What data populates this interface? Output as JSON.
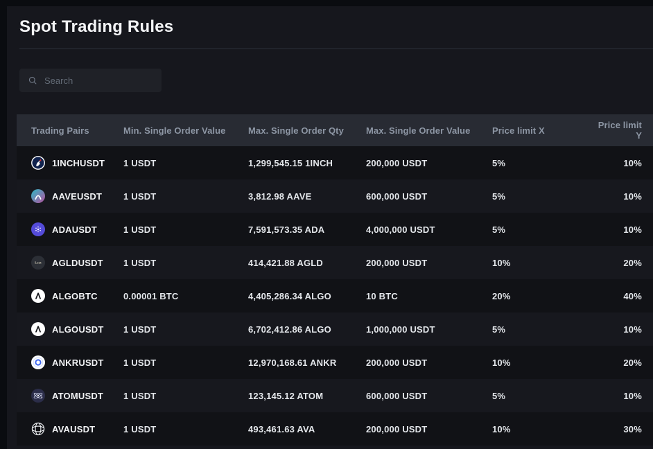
{
  "page": {
    "title": "Spot Trading Rules"
  },
  "search": {
    "placeholder": "Search"
  },
  "table": {
    "columns": [
      "Trading Pairs",
      "Min. Single Order Value",
      "Max. Single Order Qty",
      "Max. Single Order Value",
      "Price limit X",
      "Price limit Y"
    ],
    "rows": [
      {
        "pair": "1INCHUSDT",
        "icon": "1inch-icon",
        "min_single_order_value": "1 USDT",
        "max_single_order_qty": "1,299,545.15 1INCH",
        "max_single_order_value": "200,000 USDT",
        "price_limit_x": "5%",
        "price_limit_y": "10%"
      },
      {
        "pair": "AAVEUSDT",
        "icon": "aave-icon",
        "min_single_order_value": "1 USDT",
        "max_single_order_qty": "3,812.98 AAVE",
        "max_single_order_value": "600,000 USDT",
        "price_limit_x": "5%",
        "price_limit_y": "10%"
      },
      {
        "pair": "ADAUSDT",
        "icon": "ada-icon",
        "min_single_order_value": "1 USDT",
        "max_single_order_qty": "7,591,573.35 ADA",
        "max_single_order_value": "4,000,000 USDT",
        "price_limit_x": "5%",
        "price_limit_y": "10%"
      },
      {
        "pair": "AGLDUSDT",
        "icon": "agld-icon",
        "min_single_order_value": "1 USDT",
        "max_single_order_qty": "414,421.88 AGLD",
        "max_single_order_value": "200,000 USDT",
        "price_limit_x": "10%",
        "price_limit_y": "20%"
      },
      {
        "pair": "ALGOBTC",
        "icon": "algo-icon",
        "min_single_order_value": "0.00001 BTC",
        "max_single_order_qty": "4,405,286.34 ALGO",
        "max_single_order_value": "10 BTC",
        "price_limit_x": "20%",
        "price_limit_y": "40%"
      },
      {
        "pair": "ALGOUSDT",
        "icon": "algo-icon",
        "min_single_order_value": "1 USDT",
        "max_single_order_qty": "6,702,412.86 ALGO",
        "max_single_order_value": "1,000,000 USDT",
        "price_limit_x": "5%",
        "price_limit_y": "10%"
      },
      {
        "pair": "ANKRUSDT",
        "icon": "ankr-icon",
        "min_single_order_value": "1 USDT",
        "max_single_order_qty": "12,970,168.61 ANKR",
        "max_single_order_value": "200,000 USDT",
        "price_limit_x": "10%",
        "price_limit_y": "20%"
      },
      {
        "pair": "ATOMUSDT",
        "icon": "atom-icon",
        "min_single_order_value": "1 USDT",
        "max_single_order_qty": "123,145.12 ATOM",
        "max_single_order_value": "600,000 USDT",
        "price_limit_x": "5%",
        "price_limit_y": "10%"
      },
      {
        "pair": "AVAUSDT",
        "icon": "ava-icon",
        "min_single_order_value": "1 USDT",
        "max_single_order_qty": "493,461.63 AVA",
        "max_single_order_value": "200,000 USDT",
        "price_limit_x": "10%",
        "price_limit_y": "30%"
      }
    ]
  },
  "colors": {
    "panel_background": "#16171d",
    "header_row_background": "#282b33",
    "row_odd_background": "#111216",
    "row_even_background": "#17181e",
    "text_primary": "#f1f2f4",
    "text_secondary": "#8d96a4",
    "divider": "#2c313a"
  }
}
